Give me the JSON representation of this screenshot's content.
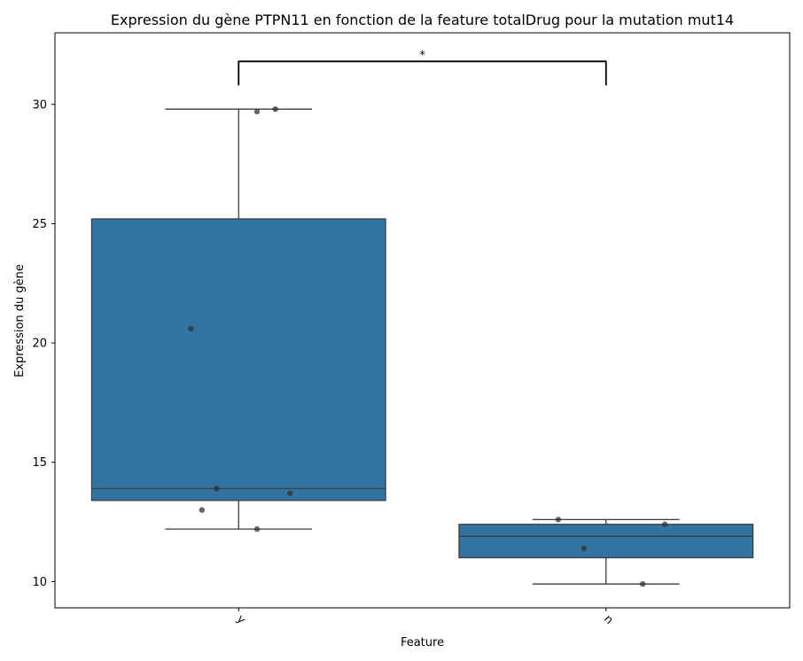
{
  "chart_data": {
    "type": "box",
    "title": "Expression du gène PTPN11 en fonction de la feature totalDrug pour la mutation mut14",
    "xlabel": "Feature",
    "ylabel": "Expression du gène",
    "ylim": [
      8.9,
      33.0
    ],
    "yticks": [
      10,
      15,
      20,
      25,
      30
    ],
    "box_color": "#3274a1",
    "categories": [
      "y",
      "n"
    ],
    "boxes": [
      {
        "category": "y",
        "whisker_low": 12.2,
        "q1": 13.4,
        "median": 13.9,
        "q3": 25.2,
        "whisker_high": 29.8
      },
      {
        "category": "n",
        "whisker_low": 9.9,
        "q1": 11.0,
        "median": 11.9,
        "q3": 12.4,
        "whisker_high": 12.6
      }
    ],
    "points": [
      {
        "category": "y",
        "values": [
          29.7,
          29.8,
          20.6,
          13.9,
          13.7,
          13.0,
          12.2
        ],
        "jitter": [
          0.05,
          0.1,
          -0.13,
          -0.06,
          0.14,
          -0.1,
          0.05
        ]
      },
      {
        "category": "n",
        "values": [
          12.6,
          12.4,
          11.4,
          9.9
        ],
        "jitter": [
          -0.13,
          0.16,
          -0.06,
          0.1
        ]
      }
    ],
    "significance": {
      "between": [
        "y",
        "n"
      ],
      "label": "*",
      "y": 31.8
    }
  }
}
